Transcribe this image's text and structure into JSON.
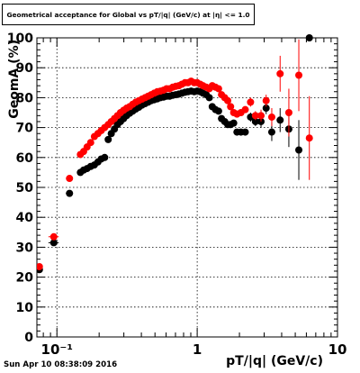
{
  "title": "Geometrical acceptance for Global vs pT/|q| (GeV/c) at |η| <= 1.0",
  "datestamp": "Sun Apr 10 08:38:09 2016",
  "chart_data": {
    "type": "scatter",
    "title": "Geometrical acceptance for Global vs pT/|q| (GeV/c) at |η| <= 1.0",
    "xlabel": "pT/|q| (GeV/c)",
    "ylabel": "GeomA (%)",
    "xscale": "log",
    "xlim": [
      0.072,
      10
    ],
    "ylim": [
      0,
      100
    ],
    "grid": true,
    "x_tick_labels": [
      "10⁻¹",
      "1",
      "10"
    ],
    "y_tick_labels": [
      "0",
      "10",
      "20",
      "30",
      "40",
      "50",
      "60",
      "70",
      "80",
      "90",
      "100"
    ],
    "series": [
      {
        "color": "#000000",
        "points": [
          [
            0.075,
            22.5,
            0.003,
            0.8
          ],
          [
            0.095,
            31.5,
            0.008,
            1.0
          ],
          [
            0.123,
            48,
            0.007,
            0.8
          ],
          [
            0.147,
            55,
            0.004,
            0.6
          ],
          [
            0.155,
            55.8,
            0.004,
            0.6
          ],
          [
            0.164,
            56.3,
            0.004,
            0.6
          ],
          [
            0.174,
            57,
            0.004,
            0.6
          ],
          [
            0.185,
            57.5,
            0.004,
            0.6
          ],
          [
            0.196,
            58.5,
            0.004,
            0.6
          ],
          [
            0.207,
            59.5,
            0.004,
            0.6
          ],
          [
            0.219,
            60,
            0.004,
            0.6
          ],
          [
            0.232,
            66,
            0.004,
            0.6
          ],
          [
            0.244,
            68,
            0.004,
            0.6
          ],
          [
            0.257,
            69.5,
            0.004,
            0.6
          ],
          [
            0.27,
            71,
            0.004,
            0.6
          ],
          [
            0.284,
            72,
            0.004,
            0.6
          ],
          [
            0.299,
            73,
            0.004,
            0.6
          ],
          [
            0.314,
            74,
            0.004,
            0.6
          ],
          [
            0.33,
            74.8,
            0.004,
            0.6
          ],
          [
            0.347,
            75.5,
            0.004,
            0.6
          ],
          [
            0.365,
            76.2,
            0.004,
            0.6
          ],
          [
            0.384,
            76.8,
            0.004,
            0.6
          ],
          [
            0.404,
            77.5,
            0.004,
            0.6
          ],
          [
            0.425,
            78,
            0.004,
            0.6
          ],
          [
            0.447,
            78.5,
            0.004,
            0.6
          ],
          [
            0.47,
            79,
            0.004,
            0.6
          ],
          [
            0.494,
            79.3,
            0.004,
            0.6
          ],
          [
            0.52,
            79.6,
            0.004,
            0.6
          ],
          [
            0.547,
            80,
            0.004,
            0.6
          ],
          [
            0.575,
            80.2,
            0.004,
            0.6
          ],
          [
            0.605,
            80.5,
            0.004,
            0.6
          ],
          [
            0.636,
            80.5,
            0.004,
            0.6
          ],
          [
            0.669,
            80.8,
            0.004,
            0.6
          ],
          [
            0.704,
            81,
            0.004,
            0.6
          ],
          [
            0.74,
            81.2,
            0.004,
            0.6
          ],
          [
            0.778,
            81.5,
            0.004,
            0.6
          ],
          [
            0.818,
            81.8,
            0.004,
            0.6
          ],
          [
            0.86,
            82,
            0.004,
            0.6
          ],
          [
            0.905,
            82.2,
            0.004,
            0.6
          ],
          [
            0.952,
            82,
            0.004,
            0.6
          ],
          [
            1.0,
            82.2,
            0.004,
            0.6
          ],
          [
            1.05,
            82,
            0.004,
            0.6
          ],
          [
            1.1,
            81.5,
            0.004,
            0.6
          ],
          [
            1.16,
            81,
            0.004,
            0.6
          ],
          [
            1.22,
            80,
            0.004,
            0.6
          ],
          [
            1.28,
            77,
            0.004,
            0.8
          ],
          [
            1.35,
            76,
            0.004,
            0.8
          ],
          [
            1.42,
            75.5,
            0.004,
            0.8
          ],
          [
            1.49,
            73,
            0.004,
            0.8
          ],
          [
            1.57,
            72,
            0.004,
            0.8
          ],
          [
            1.65,
            71,
            0.004,
            0.8
          ],
          [
            1.73,
            71,
            0.004,
            0.8
          ],
          [
            1.82,
            71.5,
            0.004,
            0.8
          ],
          [
            1.92,
            68.5,
            0.004,
            1.0
          ],
          [
            2.05,
            68.5,
            0.004,
            1.0
          ],
          [
            2.2,
            68.5,
            0.004,
            1.0
          ],
          [
            2.4,
            73.5,
            0.004,
            1.5
          ],
          [
            2.6,
            72,
            0.004,
            1.5
          ],
          [
            2.85,
            72,
            0.004,
            2.0
          ],
          [
            3.1,
            76.5,
            0.004,
            2.0
          ],
          [
            3.4,
            68.5,
            0.004,
            3.0
          ],
          [
            3.9,
            72.5,
            0.004,
            4.0
          ],
          [
            4.5,
            69.5,
            0.004,
            6.0
          ],
          [
            5.3,
            62.5,
            0.004,
            10.0
          ],
          [
            6.3,
            100,
            0.004,
            0.0
          ]
        ]
      },
      {
        "color": "#ff0000",
        "points": [
          [
            0.075,
            23.5,
            0.003,
            0.8
          ],
          [
            0.095,
            33.5,
            0.008,
            1.0
          ],
          [
            0.123,
            53,
            0.007,
            0.8
          ],
          [
            0.147,
            61,
            0.004,
            0.6
          ],
          [
            0.155,
            62,
            0.004,
            0.6
          ],
          [
            0.164,
            63.5,
            0.004,
            0.6
          ],
          [
            0.174,
            65,
            0.004,
            0.6
          ],
          [
            0.185,
            67,
            0.004,
            0.6
          ],
          [
            0.196,
            68,
            0.004,
            0.6
          ],
          [
            0.207,
            69,
            0.004,
            0.6
          ],
          [
            0.219,
            70,
            0.004,
            0.6
          ],
          [
            0.232,
            71,
            0.004,
            0.6
          ],
          [
            0.244,
            72,
            0.004,
            0.6
          ],
          [
            0.257,
            73,
            0.004,
            0.6
          ],
          [
            0.27,
            74,
            0.004,
            0.6
          ],
          [
            0.284,
            75,
            0.004,
            0.6
          ],
          [
            0.299,
            75.8,
            0.004,
            0.6
          ],
          [
            0.314,
            76.5,
            0.004,
            0.6
          ],
          [
            0.33,
            77,
            0.004,
            0.6
          ],
          [
            0.347,
            77.8,
            0.004,
            0.6
          ],
          [
            0.365,
            78.5,
            0.004,
            0.6
          ],
          [
            0.384,
            79,
            0.004,
            0.6
          ],
          [
            0.404,
            79.5,
            0.004,
            0.6
          ],
          [
            0.425,
            80,
            0.004,
            0.6
          ],
          [
            0.447,
            80.5,
            0.004,
            0.6
          ],
          [
            0.47,
            81,
            0.004,
            0.6
          ],
          [
            0.494,
            81.5,
            0.004,
            0.6
          ],
          [
            0.52,
            82,
            0.004,
            0.6
          ],
          [
            0.547,
            82.2,
            0.004,
            0.6
          ],
          [
            0.575,
            82.5,
            0.004,
            0.6
          ],
          [
            0.605,
            83,
            0.004,
            0.6
          ],
          [
            0.636,
            83,
            0.004,
            0.6
          ],
          [
            0.669,
            83.5,
            0.004,
            0.6
          ],
          [
            0.704,
            83.8,
            0.004,
            0.6
          ],
          [
            0.74,
            84,
            0.004,
            0.6
          ],
          [
            0.778,
            84.5,
            0.004,
            0.6
          ],
          [
            0.818,
            85,
            0.004,
            0.6
          ],
          [
            0.86,
            85,
            0.004,
            0.6
          ],
          [
            0.905,
            85.5,
            0.004,
            0.6
          ],
          [
            0.952,
            85,
            0.004,
            0.6
          ],
          [
            1.0,
            85,
            0.004,
            0.6
          ],
          [
            1.05,
            84.5,
            0.004,
            0.6
          ],
          [
            1.1,
            84,
            0.004,
            0.6
          ],
          [
            1.16,
            83.5,
            0.004,
            0.6
          ],
          [
            1.22,
            83,
            0.004,
            0.6
          ],
          [
            1.28,
            84,
            0.004,
            0.8
          ],
          [
            1.35,
            83.5,
            0.004,
            0.8
          ],
          [
            1.42,
            83,
            0.004,
            0.8
          ],
          [
            1.49,
            81,
            0.004,
            0.8
          ],
          [
            1.57,
            80,
            0.004,
            0.8
          ],
          [
            1.65,
            79,
            0.004,
            0.8
          ],
          [
            1.73,
            77,
            0.004,
            0.8
          ],
          [
            1.82,
            75,
            0.004,
            0.8
          ],
          [
            1.92,
            74.5,
            0.004,
            1.0
          ],
          [
            2.05,
            75,
            0.004,
            1.0
          ],
          [
            2.2,
            76,
            0.004,
            1.0
          ],
          [
            2.4,
            78.5,
            0.004,
            1.5
          ],
          [
            2.6,
            74,
            0.004,
            1.5
          ],
          [
            2.85,
            74,
            0.004,
            2.0
          ],
          [
            3.1,
            79,
            0.004,
            2.0
          ],
          [
            3.4,
            73.5,
            0.004,
            3.0
          ],
          [
            3.9,
            88,
            0.004,
            6.0
          ],
          [
            4.5,
            75,
            0.004,
            8.0
          ],
          [
            5.3,
            87.5,
            0.004,
            12.0
          ],
          [
            6.3,
            66.5,
            0.004,
            14.0
          ]
        ]
      }
    ]
  }
}
